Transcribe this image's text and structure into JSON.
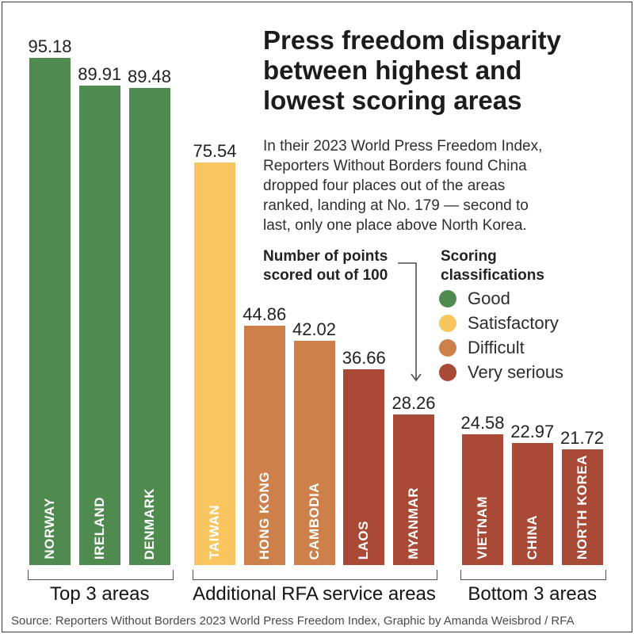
{
  "header": {
    "title": "Press freedom disparity\nbetween highest and\nlowest scoring areas",
    "subtitle": "In their 2023 World Press Freedom Index,\nReporters Without Borders found China\ndropped four places out of the areas\nranked, landing at No. 179 — second to\nlast, only one place above North Korea."
  },
  "annotation": {
    "label": "Number of points\nscored out of 100",
    "arrow_icon": "elbow-down-arrow"
  },
  "legend": {
    "title": "Scoring\nclassifications",
    "items": [
      {
        "label": "Good",
        "color": "#4f8b4f"
      },
      {
        "label": "Satisfactory",
        "color": "#f9c55e"
      },
      {
        "label": "Difficult",
        "color": "#cd8049"
      },
      {
        "label": "Very serious",
        "color": "#a94a36"
      }
    ]
  },
  "chart_data": {
    "type": "bar",
    "title": "Press freedom disparity between highest and lowest scoring areas",
    "ylabel": "Number of points scored out of 100",
    "ylim": [
      0,
      100
    ],
    "grid": false,
    "legend_position": "right",
    "classification_colors": {
      "Good": "#4f8b4f",
      "Satisfactory": "#f9c55e",
      "Difficult": "#cd8049",
      "Very serious": "#a94a36"
    },
    "groups": [
      {
        "label": "Top 3 areas",
        "bars": [
          {
            "area": "NORWAY",
            "value": 95.18,
            "classification": "Good"
          },
          {
            "area": "IRELAND",
            "value": 89.91,
            "classification": "Good"
          },
          {
            "area": "DENMARK",
            "value": 89.48,
            "classification": "Good"
          }
        ]
      },
      {
        "label": "Additional RFA service areas",
        "bars": [
          {
            "area": "TAIWAN",
            "value": 75.54,
            "classification": "Satisfactory"
          },
          {
            "area": "HONG KONG",
            "value": 44.86,
            "classification": "Difficult"
          },
          {
            "area": "CAMBODIA",
            "value": 42.02,
            "classification": "Difficult"
          },
          {
            "area": "LAOS",
            "value": 36.66,
            "classification": "Very serious"
          },
          {
            "area": "MYANMAR",
            "value": 28.26,
            "classification": "Very serious"
          }
        ]
      },
      {
        "label": "Bottom 3 areas",
        "bars": [
          {
            "area": "VIETNAM",
            "value": 24.58,
            "classification": "Very serious"
          },
          {
            "area": "CHINA",
            "value": 22.97,
            "classification": "Very serious"
          },
          {
            "area": "NORTH KOREA",
            "value": 21.72,
            "classification": "Very serious"
          }
        ]
      }
    ]
  },
  "footer": {
    "source": "Source: Reporters Without Borders 2023 World Press Freedom Index, Graphic by Amanda Weisbrod / RFA"
  }
}
